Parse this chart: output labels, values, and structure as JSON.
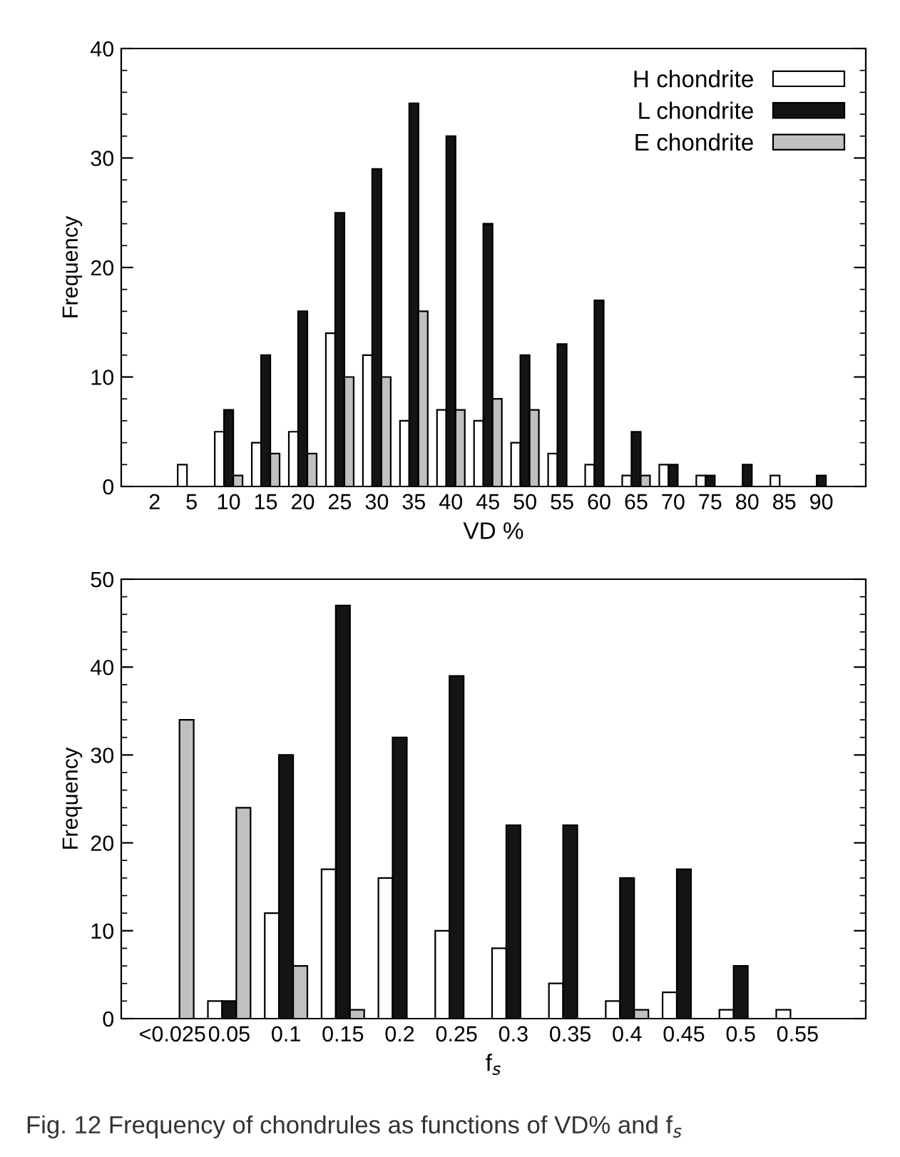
{
  "chart_data": [
    {
      "type": "bar",
      "xlabel": "VD %",
      "ylabel": "Frequency",
      "categories": [
        "2",
        "5",
        "10",
        "15",
        "20",
        "25",
        "30",
        "35",
        "40",
        "45",
        "50",
        "55",
        "60",
        "65",
        "70",
        "75",
        "80",
        "85",
        "90"
      ],
      "series": [
        {
          "name": "H chondrite",
          "color": "#ffffff",
          "values": [
            0,
            2,
            5,
            4,
            5,
            14,
            12,
            6,
            7,
            6,
            4,
            3,
            2,
            1,
            2,
            1,
            0,
            1,
            0
          ]
        },
        {
          "name": "L chondrite",
          "color": "#141414",
          "values": [
            0,
            0,
            7,
            12,
            16,
            25,
            29,
            35,
            32,
            24,
            12,
            13,
            17,
            5,
            2,
            1,
            2,
            0,
            1
          ]
        },
        {
          "name": "E chondrite",
          "color": "#c0c0c0",
          "values": [
            0,
            0,
            1,
            3,
            3,
            10,
            10,
            16,
            7,
            8,
            7,
            0,
            0,
            1,
            0,
            0,
            0,
            0,
            0
          ]
        }
      ],
      "ylim": [
        0,
        40
      ],
      "yticks": [
        0,
        {
          "value": 2,
          "label": null
        },
        {
          "value": 4,
          "label": null
        },
        {
          "value": 6,
          "label": null
        },
        {
          "value": 8,
          "label": null
        },
        10,
        {
          "value": 12,
          "label": null
        },
        {
          "value": 14,
          "label": null
        },
        {
          "value": 16,
          "label": null
        },
        {
          "value": 18,
          "label": null
        },
        20,
        {
          "value": 22,
          "label": null
        },
        {
          "value": 24,
          "label": null
        },
        {
          "value": 26,
          "label": null
        },
        {
          "value": 28,
          "label": null
        },
        30,
        {
          "value": 32,
          "label": null
        },
        {
          "value": 34,
          "label": null
        },
        {
          "value": 36,
          "label": null
        },
        {
          "value": 38,
          "label": null
        },
        40
      ],
      "grid": false,
      "legend": "top right"
    },
    {
      "type": "bar",
      "xlabel": "f$_{s}$",
      "ylabel": "Frequency",
      "categories": [
        "<0.025",
        "0.05",
        "0.1",
        "0.15",
        "0.2",
        "0.25",
        "0.3",
        "0.35",
        "0.4",
        "0.45",
        "0.5",
        "0.55"
      ],
      "series": [
        {
          "color": "#ffffff",
          "values": [
            0,
            2,
            12,
            17,
            16,
            10,
            8,
            4,
            2,
            3,
            1,
            1
          ]
        },
        {
          "color": "#141414",
          "values": [
            0,
            2,
            30,
            47,
            32,
            39,
            22,
            22,
            16,
            17,
            6,
            0
          ]
        },
        {
          "color": "#c0c0c0",
          "values": [
            34,
            24,
            6,
            1,
            0,
            0,
            0,
            0,
            1,
            0,
            0,
            0
          ]
        }
      ],
      "ylim": [
        0,
        50
      ],
      "yticks": [
        0,
        {
          "value": 2,
          "label": null
        },
        {
          "value": 4,
          "label": null
        },
        {
          "value": 6,
          "label": null
        },
        {
          "value": 8,
          "label": null
        },
        10,
        {
          "value": 12,
          "label": null
        },
        {
          "value": 14,
          "label": null
        },
        {
          "value": 16,
          "label": null
        },
        {
          "value": 18,
          "label": null
        },
        20,
        {
          "value": 22,
          "label": null
        },
        {
          "value": 24,
          "label": null
        },
        {
          "value": 26,
          "label": null
        },
        {
          "value": 28,
          "label": null
        },
        30,
        {
          "value": 32,
          "label": null
        },
        {
          "value": 34,
          "label": null
        },
        {
          "value": 36,
          "label": null
        },
        {
          "value": 38,
          "label": null
        },
        40,
        {
          "value": 42,
          "label": null
        },
        {
          "value": 44,
          "label": null
        },
        {
          "value": 46,
          "label": null
        },
        {
          "value": 48,
          "label": null
        },
        50
      ],
      "grid": false,
      "annotations": [
        "Fig. 12 Frequency of chondrules as functions of VD% and f$_{s}$"
      ]
    }
  ]
}
